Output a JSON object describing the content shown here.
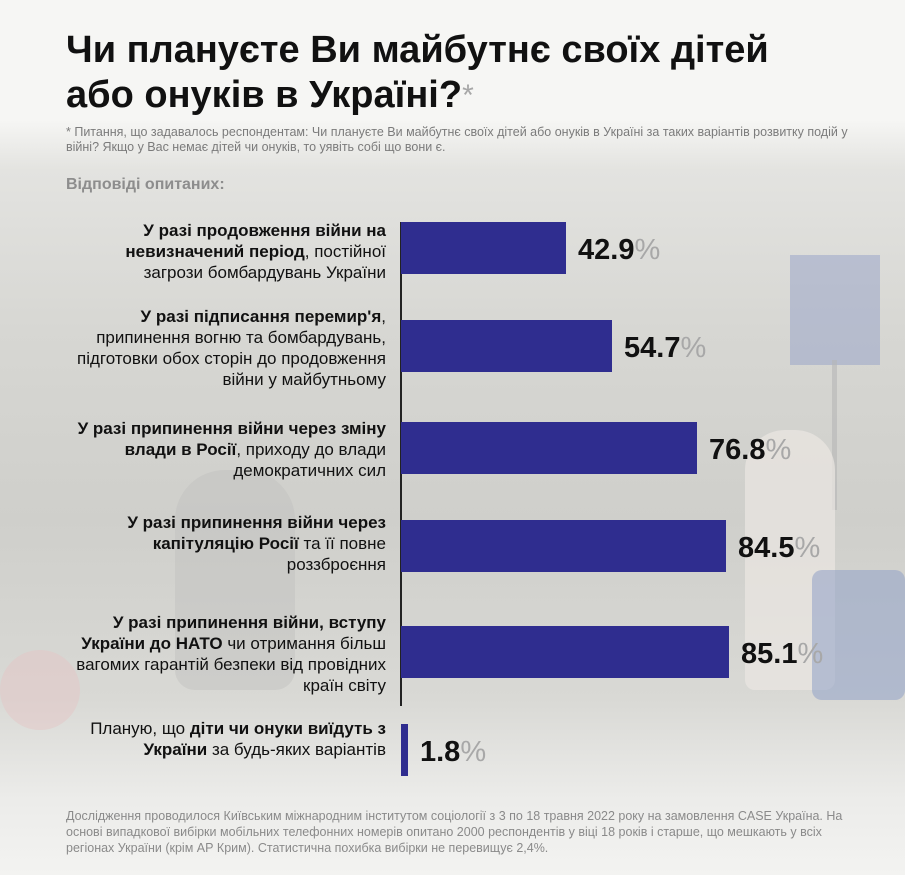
{
  "title_line1": "Чи плануєте Ви майбутнє своїх дітей",
  "title_line2": "або онуків в Україні?",
  "title_mark": "*",
  "note": "* Питання, що задавалось респондентам: Чи плануєте Ви майбутнє своїх дітей або онуків в Україні за таких варіантів розвитку подій у війні? Якщо у Вас немає дітей чи онуків, то уявіть собі що вони є.",
  "subhead": "Відповіді опитаних:",
  "percent_sign": "%",
  "footer": "Дослідження проводилося Київським міжнародним інститутом соціології з 3 по 18 травня 2022 року на замовлення CASE Україна. На основі випадкової вибірки мобільних телефонних номерів опитано 2000 респондентів у віці 18 років і старше, що мешкають у всіх регіонах України (крім АР Крим). Статистична похибка вибірки не перевищує 2,4%.",
  "colors": {
    "bar": "#2f2d8f",
    "percent": "#a8a8a8",
    "axis": "#222222"
  },
  "chart_data": {
    "type": "bar",
    "orientation": "horizontal",
    "unit": "%",
    "xlim": [
      0,
      100
    ],
    "categories": [
      {
        "bold": "У разі продовження війни на невизначений період",
        "rest": ", постійної загрози бомбардувань України"
      },
      {
        "bold": "У разі підписання перемир'я",
        "rest": ", припинення вогню та бомбардувань, підготовки обох сторін до продовження війни у майбутньому"
      },
      {
        "bold": "У разі припинення війни через зміну влади в Росії",
        "rest": ", приходу до влади демократичних сил"
      },
      {
        "bold": "У разі припинення війни через капітуляцію Росії",
        "rest": " та її повне роззброєння"
      },
      {
        "bold": "У разі припинення війни, вступу України до НАТО",
        "rest": " чи отримання більш вагомих гарантій безпеки від провідних країн світу"
      },
      {
        "pre": "Планую, що ",
        "bold": "діти чи онуки виїдуть з України",
        "rest": " за будь-яких варіантів"
      }
    ],
    "values": [
      42.9,
      54.7,
      76.8,
      84.5,
      85.1,
      1.8
    ],
    "value_labels": [
      "42.9",
      "54.7",
      "76.8",
      "84.5",
      "85.1",
      "1.8"
    ]
  }
}
